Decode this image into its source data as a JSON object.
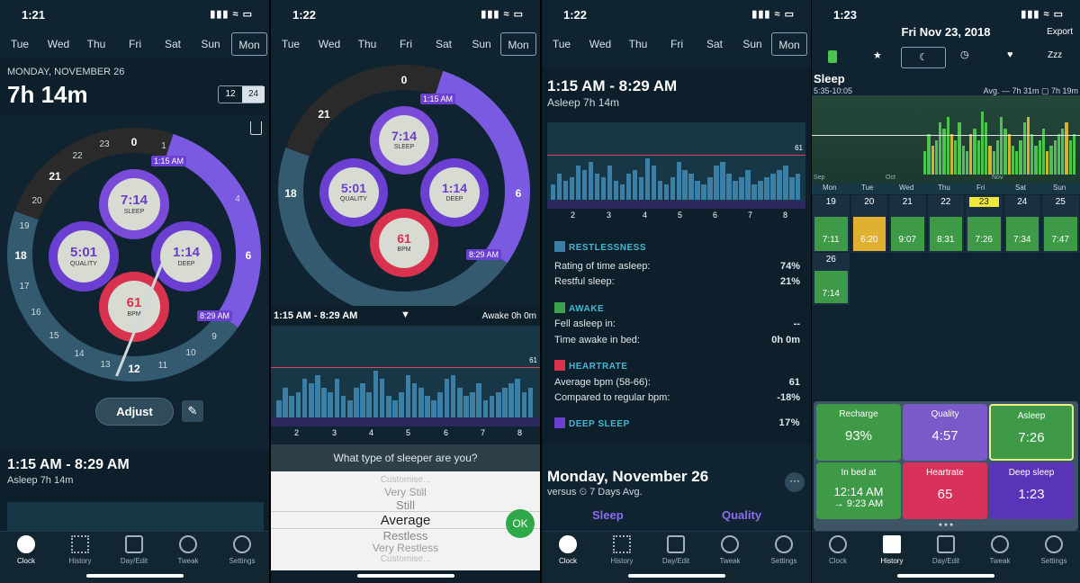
{
  "screens": [
    {
      "status_time": "1:21",
      "days": [
        "Tue",
        "Wed",
        "Thu",
        "Fri",
        "Sat",
        "Sun",
        "Mon"
      ],
      "date_label": "MONDAY, NOVEMBER 26",
      "duration": "7h 14m",
      "toggle_12": "12",
      "toggle_24": "24",
      "hours": [
        "0",
        "1",
        "2",
        "3",
        "4",
        "5",
        "6",
        "7",
        "8",
        "9",
        "10",
        "11",
        "12",
        "13",
        "14",
        "15",
        "16",
        "17",
        "18",
        "19",
        "20",
        "21",
        "22",
        "23"
      ],
      "start_label": "1:15 AM",
      "end_label": "8:29 AM",
      "sleep_value": "7:14",
      "sleep_label": "SLEEP",
      "quality_value": "5:01",
      "quality_label": "QUALITY",
      "deep_value": "1:14",
      "deep_label": "DEEP",
      "bpm_value": "61",
      "bpm_label": "BPM",
      "adjust_label": "Adjust",
      "range_title": "1:15 AM - 8:29 AM",
      "asleep_text": "Asleep 7h 14m"
    },
    {
      "status_time": "1:22",
      "range_title": "1:15 AM - 8:29 AM",
      "awake_text": "Awake 0h 0m",
      "chart_max": "61",
      "x_ticks": [
        "2",
        "3",
        "4",
        "5",
        "6",
        "7",
        "8"
      ],
      "question": "What type of sleeper are you?",
      "picker": [
        "Customise...",
        "Very Still",
        "Still",
        "Average",
        "Restless",
        "Very Restless",
        "Customise..."
      ],
      "ok_label": "OK"
    },
    {
      "status_time": "1:22",
      "range_title": "1:15 AM - 8:29 AM",
      "asleep_text": "Asleep 7h 14m",
      "chart_max": "61",
      "x_ticks": [
        "2",
        "3",
        "4",
        "5",
        "6",
        "7",
        "8"
      ],
      "sections": [
        {
          "title": "RESTLESSNESS",
          "color": "#3b7ea6",
          "rows": [
            [
              "Rating of time asleep:",
              "74%"
            ],
            [
              "Restful sleep:",
              "21%"
            ]
          ]
        },
        {
          "title": "AWAKE",
          "color": "#3aa24a",
          "rows": [
            [
              "Fell asleep in:",
              "--"
            ],
            [
              "Time awake in bed:",
              "0h 0m"
            ]
          ]
        },
        {
          "title": "HEARTRATE",
          "color": "#d9324f",
          "rows": [
            [
              "Average bpm (58-66):",
              "61"
            ],
            [
              "Compared to regular bpm:",
              "-18%"
            ]
          ]
        },
        {
          "title": "DEEP SLEEP",
          "color": "#6b3fd1",
          "rows": [
            [
              "",
              "17%"
            ]
          ]
        }
      ],
      "summary_title": "Monday, November 26",
      "summary_sub": "versus ⏲ 7 Days Avg.",
      "col_sleep": "Sleep",
      "col_quality": "Quality"
    },
    {
      "status_time": "1:23",
      "date": "Fri Nov 23, 2018",
      "export_label": "Export",
      "sleep_title": "Sleep",
      "sleep_range": "5:35-10:05",
      "avg_text": "Avg. — 7h 31m  ▢ 7h 19m",
      "months": [
        "Sep",
        "Oct",
        "Nov"
      ],
      "weekdays": [
        "Mon",
        "Tue",
        "Wed",
        "Thu",
        "Fri",
        "Sat",
        "Sun"
      ],
      "cal_dates": [
        "19",
        "20",
        "21",
        "22",
        "23",
        "24",
        "25",
        "26"
      ],
      "cal_values": [
        "7:11",
        "6:20",
        "9:07",
        "8:31",
        "7:26",
        "7:34",
        "7:47",
        "7:14"
      ],
      "tiles": [
        {
          "label": "Recharge",
          "value": "93%",
          "color": "#3f9a48"
        },
        {
          "label": "Quality",
          "value": "4:57",
          "color": "#7a5ac8"
        },
        {
          "label": "Asleep",
          "value": "7:26",
          "color": "#3f9a48"
        },
        {
          "label": "In bed at",
          "value": "12:14 AM",
          "value2": "→ 9:23 AM",
          "color": "#3f9a48"
        },
        {
          "label": "Heartrate",
          "value": "65",
          "color": "#d9325a"
        },
        {
          "label": "Deep sleep",
          "value": "1:23",
          "color": "#5a34b8"
        }
      ]
    }
  ],
  "tabs": [
    "Clock",
    "History",
    "Day/Edit",
    "Tweak",
    "Settings"
  ],
  "chart_data": {
    "type": "bar",
    "title": "",
    "x_ticks": [
      "2",
      "3",
      "4",
      "5",
      "6",
      "7",
      "8"
    ],
    "values": [
      4,
      7,
      5,
      6,
      9,
      8,
      10,
      7,
      6,
      9,
      5,
      4,
      7,
      8,
      6,
      11,
      9,
      5,
      4,
      6,
      10,
      8,
      7,
      5,
      4,
      6,
      9,
      10,
      7,
      5,
      6,
      8,
      4,
      5,
      6,
      7,
      8,
      9,
      6,
      7
    ],
    "heart_line": 61
  }
}
